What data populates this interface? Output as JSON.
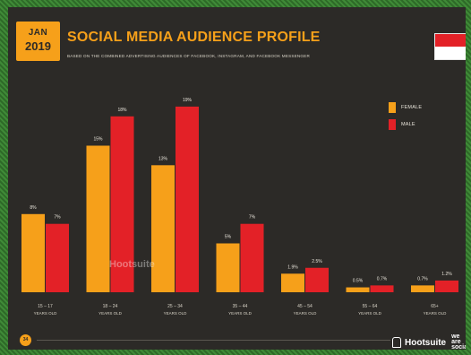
{
  "header": {
    "month": "JAN",
    "year": "2019",
    "title": "SOCIAL MEDIA AUDIENCE PROFILE",
    "subtitle": "BASED ON THE COMBINED ADVERTISING AUDIENCES OF FACEBOOK, INSTAGRAM, AND FACEBOOK MESSENGER"
  },
  "flag": {
    "name": "indonesia-flag",
    "colors": [
      "#e32127",
      "#ffffff"
    ]
  },
  "colors": {
    "female": "#f6a01a",
    "male": "#e32127",
    "slide_background": "#2c2a27",
    "axis_text": "#d8d3c7"
  },
  "watermark": "Hootsuite",
  "footer": {
    "page_number": "34",
    "brand": "Hootsuite",
    "brand_secondary": [
      "we",
      "are",
      "social"
    ]
  },
  "chart_data": {
    "type": "bar",
    "categories": [
      "15 – 17",
      "18 – 24",
      "25 – 34",
      "35 – 44",
      "45 – 54",
      "55 – 64",
      "65+"
    ],
    "category_sublabel": "YEARS OLD",
    "series": [
      {
        "name": "FEMALE",
        "values": [
          8,
          15,
          13,
          5,
          1.9,
          0.5,
          0.7
        ],
        "labels": [
          "8%",
          "15%",
          "13%",
          "5%",
          "1.9%",
          "0.5%",
          "0.7%"
        ]
      },
      {
        "name": "MALE",
        "values": [
          7,
          18,
          19,
          7,
          2.5,
          0.7,
          1.2
        ],
        "labels": [
          "7%",
          "18%",
          "19%",
          "7%",
          "2.5%",
          "0.7%",
          "1.2%"
        ]
      }
    ],
    "ylim": [
      0,
      20
    ],
    "legend_position": "top-right",
    "grid": false
  }
}
